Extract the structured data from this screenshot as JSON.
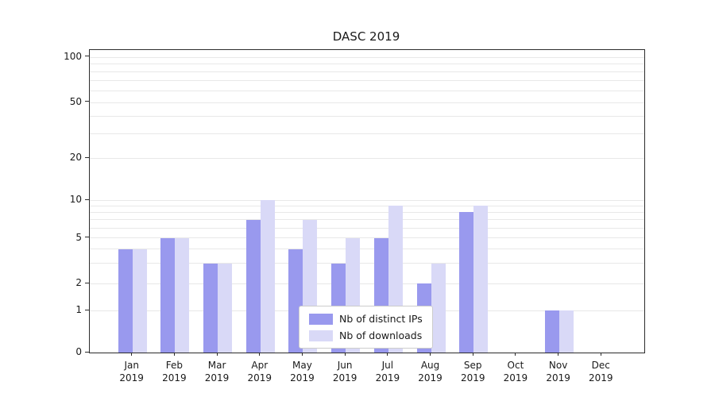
{
  "chart_data": {
    "type": "bar",
    "title": "DASC 2019",
    "year": "2019",
    "categories": [
      "Jan",
      "Feb",
      "Mar",
      "Apr",
      "May",
      "Jun",
      "Jul",
      "Aug",
      "Sep",
      "Oct",
      "Nov",
      "Dec"
    ],
    "series": [
      {
        "name": "Nb of distinct IPs",
        "color": "#9999ee",
        "values": [
          4,
          5,
          3,
          7,
          4,
          3,
          5,
          2,
          8,
          0,
          1,
          0
        ]
      },
      {
        "name": "Nb of downloads",
        "color": "#d9d9f7",
        "values": [
          4,
          5,
          3,
          10,
          7,
          5,
          9,
          3,
          9,
          0,
          1,
          0
        ]
      }
    ],
    "xlabel": "",
    "ylabel": "",
    "yscale": "symlog",
    "ylim": [
      0,
      100
    ],
    "yticks": [
      0,
      1,
      2,
      5,
      10,
      20,
      50,
      100
    ],
    "minor_gridlines": [
      3,
      4,
      6,
      7,
      8,
      9,
      30,
      40,
      60,
      70,
      80,
      90
    ],
    "grid": true,
    "legend_position": "lower center"
  }
}
